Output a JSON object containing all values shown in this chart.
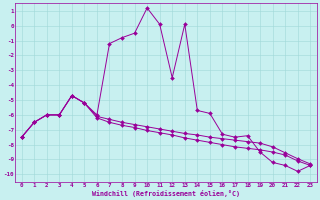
{
  "xlabel": "Windchill (Refroidissement éolien,°C)",
  "background_color": "#c8f0f0",
  "grid_color": "#a0d8d8",
  "line_color": "#990099",
  "hours": [
    0,
    1,
    2,
    3,
    4,
    5,
    6,
    7,
    8,
    9,
    10,
    11,
    12,
    13,
    14,
    15,
    16,
    17,
    18,
    19,
    20,
    21,
    22,
    23
  ],
  "line1": [
    -7.5,
    -6.5,
    -6.0,
    -6.0,
    -4.7,
    -5.2,
    -6.0,
    -1.2,
    -0.8,
    -0.5,
    1.2,
    0.1,
    -3.5,
    0.1,
    -5.7,
    -5.9,
    -7.3,
    -7.5,
    -7.4,
    -8.5,
    -9.2,
    -9.4,
    -9.8,
    -9.4
  ],
  "line2": [
    -7.5,
    -6.5,
    -6.0,
    -6.0,
    -4.7,
    -5.2,
    -6.2,
    -6.5,
    -6.7,
    -6.85,
    -7.05,
    -7.2,
    -7.35,
    -7.55,
    -7.7,
    -7.85,
    -8.0,
    -8.15,
    -8.25,
    -8.35,
    -8.5,
    -8.7,
    -9.1,
    -9.4
  ],
  "line3": [
    -7.5,
    -6.5,
    -6.0,
    -6.0,
    -4.7,
    -5.2,
    -6.1,
    -6.3,
    -6.5,
    -6.65,
    -6.8,
    -6.95,
    -7.1,
    -7.25,
    -7.35,
    -7.5,
    -7.6,
    -7.7,
    -7.8,
    -7.9,
    -8.15,
    -8.55,
    -8.95,
    -9.3
  ],
  "ylim": [
    -10.5,
    1.5
  ],
  "yticks": [
    1,
    0,
    -1,
    -2,
    -3,
    -4,
    -5,
    -6,
    -7,
    -8,
    -9,
    -10
  ]
}
